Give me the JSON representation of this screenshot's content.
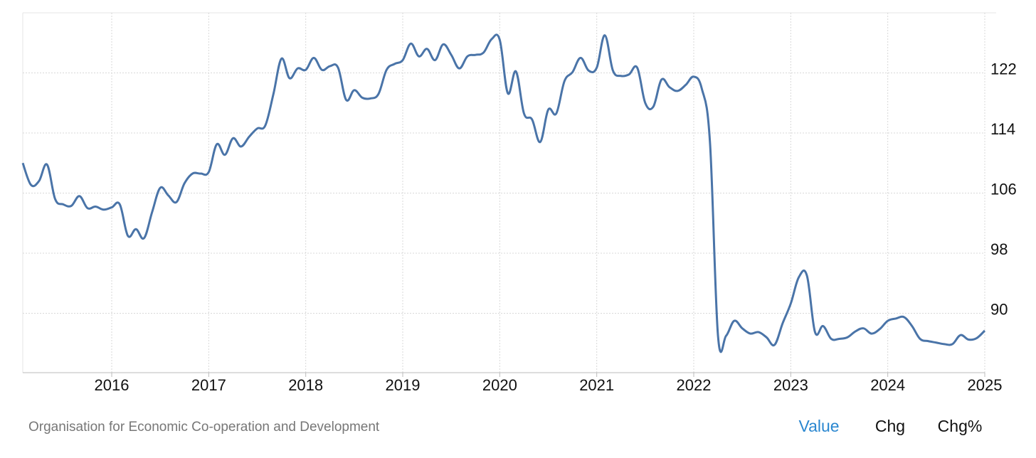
{
  "chart_data": {
    "type": "line",
    "xlim": [
      2015.083,
      2025
    ],
    "xticks": [
      2016,
      2017,
      2018,
      2019,
      2020,
      2021,
      2022,
      2023,
      2024,
      2025
    ],
    "ylim": [
      82.1,
      130
    ],
    "yticks": [
      90,
      98,
      106,
      114,
      122
    ],
    "grid": true,
    "series": [
      {
        "color": "#4a74a8",
        "x": [
          2015.083,
          2015.167,
          2015.25,
          2015.333,
          2015.417,
          2015.5,
          2015.583,
          2015.667,
          2015.75,
          2015.833,
          2015.917,
          2016,
          2016.083,
          2016.167,
          2016.25,
          2016.333,
          2016.417,
          2016.5,
          2016.583,
          2016.667,
          2016.75,
          2016.833,
          2016.917,
          2017,
          2017.083,
          2017.167,
          2017.25,
          2017.333,
          2017.417,
          2017.5,
          2017.583,
          2017.667,
          2017.75,
          2017.833,
          2017.917,
          2018,
          2018.083,
          2018.167,
          2018.25,
          2018.333,
          2018.417,
          2018.5,
          2018.583,
          2018.667,
          2018.75,
          2018.833,
          2018.917,
          2019,
          2019.083,
          2019.167,
          2019.25,
          2019.333,
          2019.417,
          2019.5,
          2019.583,
          2019.667,
          2019.75,
          2019.833,
          2019.917,
          2020,
          2020.083,
          2020.167,
          2020.25,
          2020.333,
          2020.417,
          2020.5,
          2020.583,
          2020.667,
          2020.75,
          2020.833,
          2020.917,
          2021,
          2021.083,
          2021.167,
          2021.25,
          2021.333,
          2021.417,
          2021.5,
          2021.583,
          2021.667,
          2021.75,
          2021.833,
          2021.917,
          2022,
          2022.083,
          2022.167,
          2022.25,
          2022.333,
          2022.417,
          2022.5,
          2022.583,
          2022.667,
          2022.75,
          2022.833,
          2022.917,
          2023,
          2023.083,
          2023.167,
          2023.25,
          2023.333,
          2023.417,
          2023.5,
          2023.583,
          2023.667,
          2023.75,
          2023.833,
          2023.917,
          2024,
          2024.083,
          2024.167,
          2024.25,
          2024.333,
          2024.417,
          2024.5,
          2024.583,
          2024.667,
          2024.75,
          2024.833,
          2024.917,
          2025
        ],
        "values": [
          110.0,
          107.1,
          107.6,
          109.8,
          105.2,
          104.5,
          104.3,
          105.6,
          104.0,
          104.2,
          103.8,
          104.1,
          104.5,
          100.3,
          101.2,
          100.0,
          103.5,
          106.7,
          105.7,
          104.8,
          107.3,
          108.6,
          108.6,
          108.8,
          112.5,
          111.1,
          113.3,
          112.2,
          113.5,
          114.6,
          115.0,
          119.2,
          123.9,
          121.3,
          122.6,
          122.4,
          124.0,
          122.4,
          122.9,
          122.7,
          118.4,
          119.7,
          118.7,
          118.6,
          119.2,
          122.4,
          123.2,
          123.7,
          125.9,
          124.2,
          125.2,
          123.7,
          125.8,
          124.4,
          122.6,
          124.2,
          124.4,
          124.7,
          126.5,
          126.4,
          119.3,
          122.2,
          116.6,
          115.8,
          112.8,
          117.1,
          116.6,
          120.9,
          122.1,
          124.0,
          122.3,
          122.7,
          127.0,
          122.3,
          121.6,
          121.8,
          122.7,
          118.0,
          117.5,
          121.1,
          120.1,
          119.6,
          120.4,
          121.5,
          119.9,
          112.8,
          87.0,
          87.0,
          89.0,
          88.0,
          87.3,
          87.5,
          86.8,
          85.8,
          88.7,
          91.3,
          94.8,
          95.0,
          87.5,
          88.3,
          86.6,
          86.6,
          86.8,
          87.6,
          88.0,
          87.3,
          87.9,
          89.0,
          89.3,
          89.5,
          88.3,
          86.6,
          86.3,
          86.1,
          85.9,
          85.9,
          87.1,
          86.5,
          86.7,
          87.7
        ]
      }
    ]
  },
  "source": "Organisation for Economic Co-operation and Development",
  "buttons": [
    "Value",
    "Chg",
    "Chg%"
  ]
}
